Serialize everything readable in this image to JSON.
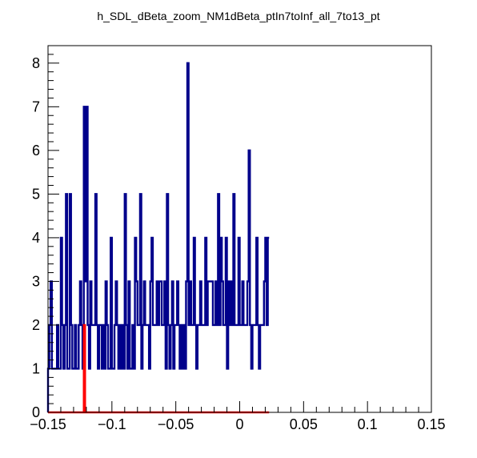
{
  "chart_data": {
    "type": "histogram",
    "title": "h_SDL_dBeta_zoom_NM1dBeta_ptIn7toInf_all_7to13_pt",
    "xlabel": "",
    "ylabel": "",
    "xlim": [
      -0.15,
      0.15
    ],
    "ylim": [
      0,
      8.4
    ],
    "grid": false,
    "legend": "none",
    "x_ticks": [
      {
        "value": -0.15,
        "label": "−0.15"
      },
      {
        "value": -0.1,
        "label": "−0.1"
      },
      {
        "value": -0.05,
        "label": "−0.05"
      },
      {
        "value": 0,
        "label": "0"
      },
      {
        "value": 0.05,
        "label": "0.05"
      },
      {
        "value": 0.1,
        "label": "0.1"
      },
      {
        "value": 0.15,
        "label": "0.15"
      }
    ],
    "y_ticks": [
      {
        "value": 0,
        "label": "0"
      },
      {
        "value": 1,
        "label": "1"
      },
      {
        "value": 2,
        "label": "2"
      },
      {
        "value": 3,
        "label": "3"
      },
      {
        "value": 4,
        "label": "4"
      },
      {
        "value": 5,
        "label": "5"
      },
      {
        "value": 6,
        "label": "6"
      },
      {
        "value": 7,
        "label": "7"
      },
      {
        "value": 8,
        "label": "8"
      }
    ],
    "series": [
      {
        "color": "#00008b",
        "bin_width": 0.001,
        "x_start": -0.15,
        "counts": [
          1,
          2,
          3,
          1,
          1,
          1,
          1,
          2,
          1,
          1,
          4,
          2,
          1,
          2,
          5,
          1,
          1,
          5,
          2,
          1,
          1,
          2,
          1,
          1,
          2,
          3,
          2,
          1,
          7,
          3,
          7,
          2,
          1,
          3,
          2,
          2,
          2,
          5,
          2,
          1,
          2,
          2,
          1,
          2,
          1,
          3,
          2,
          1,
          1,
          4,
          1,
          1,
          2,
          3,
          2,
          1,
          2,
          1,
          2,
          1,
          5,
          2,
          1,
          3,
          1,
          1,
          2,
          1,
          4,
          3,
          2,
          2,
          5,
          1,
          2,
          3,
          2,
          2,
          2,
          1,
          3,
          4,
          2,
          2,
          2,
          3,
          2,
          3,
          3,
          2,
          2,
          3,
          1,
          5,
          2,
          1,
          2,
          3,
          1,
          2,
          2,
          3,
          2,
          1,
          2,
          1,
          2,
          1,
          3,
          8,
          2,
          3,
          2,
          2,
          4,
          2,
          1,
          2,
          2,
          3,
          2,
          2,
          2,
          4,
          2,
          3,
          3,
          3,
          3,
          2,
          2,
          3,
          2,
          5,
          2,
          4,
          3,
          2,
          2,
          4,
          1,
          3,
          2,
          3,
          2,
          5,
          2,
          2,
          2,
          4,
          2,
          2,
          3,
          2,
          2,
          2,
          3,
          6,
          2,
          1,
          2,
          2,
          2,
          4,
          2,
          1,
          2,
          2,
          2,
          3,
          4,
          2,
          4
        ],
        "stroke_width": 2.4
      },
      {
        "color": "#ff0000",
        "bin_width": 0.001,
        "x_start": -0.15,
        "counts": [
          0,
          0,
          0,
          0,
          0,
          0,
          0,
          0,
          0,
          0,
          0,
          0,
          0,
          0,
          0,
          0,
          0,
          0,
          0,
          0,
          0,
          0,
          0,
          0,
          0,
          0,
          0,
          0,
          2,
          0,
          0,
          0,
          0,
          0,
          0,
          0,
          0,
          0,
          0,
          0,
          0,
          0,
          0,
          0,
          0,
          0,
          0,
          0,
          0,
          0,
          0,
          0,
          0,
          0,
          0,
          0,
          0,
          0,
          0,
          0,
          0,
          0,
          0,
          0,
          0,
          0,
          0,
          0,
          0,
          0,
          0,
          0,
          0,
          0,
          0,
          0,
          0,
          0,
          0,
          0,
          0,
          0,
          0,
          0,
          0,
          0,
          0,
          0,
          0,
          0,
          0,
          0,
          0,
          0,
          0,
          0,
          0,
          0,
          0,
          0,
          0,
          0,
          0,
          0,
          0,
          0,
          0,
          0,
          0,
          0,
          0,
          0,
          0,
          0,
          0,
          0,
          0,
          0,
          0,
          0,
          0,
          0,
          0,
          0,
          0,
          0,
          0,
          0,
          0,
          0,
          0,
          0,
          0,
          0,
          0,
          0,
          0,
          0,
          0,
          0,
          0,
          0,
          0,
          0,
          0,
          0,
          0,
          0,
          0,
          0,
          0,
          0,
          0,
          0,
          0,
          0,
          0,
          0,
          0,
          0,
          0,
          0,
          0,
          0,
          0,
          0,
          0,
          0,
          0,
          0,
          0,
          0,
          0
        ],
        "stroke_width": 2.4
      }
    ]
  }
}
